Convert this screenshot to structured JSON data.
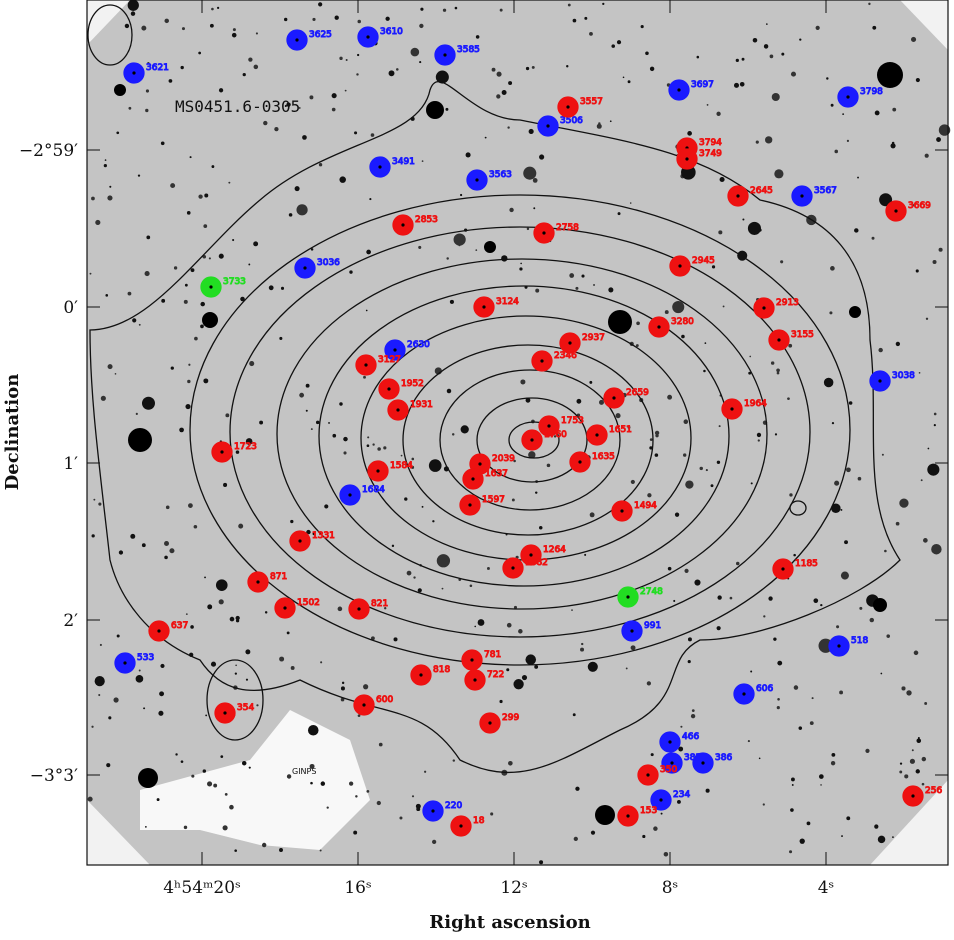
{
  "title": "MS0451.6-0305",
  "mask_label": "GINPS",
  "x_axis": {
    "label": "Right ascension",
    "ticks": [
      "4ʰ54ᵐ20ˢ",
      "16ˢ",
      "12ˢ",
      "8ˢ",
      "4ˢ"
    ]
  },
  "y_axis": {
    "label": "Declination",
    "ticks": [
      "−2°59′",
      "0′",
      "1′",
      "2′",
      "−3°3′"
    ]
  },
  "blue_sources": [
    "3621",
    "3625",
    "3610",
    "3585",
    "3697",
    "3798",
    "3506",
    "3491",
    "3563",
    "3567",
    "3036",
    "2630",
    "3038",
    "1684",
    "991",
    "518",
    "533",
    "606",
    "466",
    "383",
    "386",
    "234",
    "220"
  ],
  "red_sources": [
    "3557",
    "3794",
    "3749",
    "2645",
    "3669",
    "2853",
    "2758",
    "2945",
    "2913",
    "3124",
    "3280",
    "3155",
    "2937",
    "2346",
    "3127",
    "1952",
    "2659",
    "1931",
    "1964",
    "1753",
    "1651",
    "1760",
    "1723",
    "1584",
    "1635",
    "2039",
    "1637",
    "1597",
    "1494",
    "1331",
    "1264",
    "1082",
    "1185",
    "871",
    "1502",
    "821",
    "637",
    "781",
    "722",
    "818",
    "354",
    "600",
    "299",
    "350",
    "153",
    "18",
    "256"
  ],
  "green_sources": [
    "3733",
    "2748"
  ]
}
